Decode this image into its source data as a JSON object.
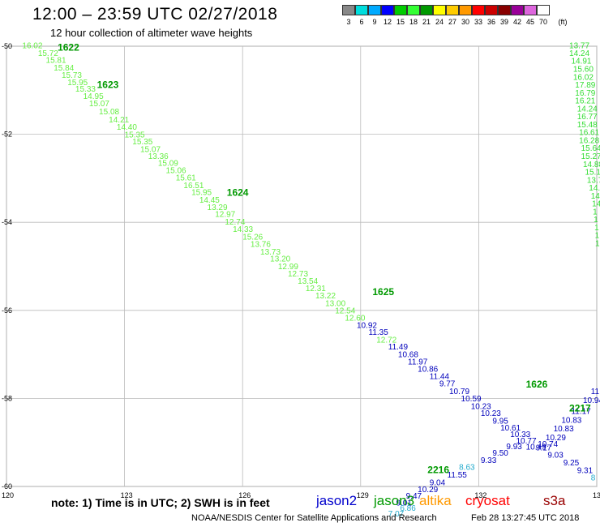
{
  "title": "12:00 – 23:59 UTC 02/27/2018",
  "subtitle": "12 hour collection of altimeter wave heights",
  "note": "note:  1) Time is in UTC;  2) SWH is in feet",
  "satellites": [
    {
      "name": "jason2",
      "color": "#0000cc"
    },
    {
      "name": "jason3",
      "color": "#009900"
    },
    {
      "name": "altika",
      "color": "#ff9900"
    },
    {
      "name": "cryosat",
      "color": "#ff0000"
    },
    {
      "name": "s3a",
      "color": "#990000"
    }
  ],
  "credit": "NOAA/NESDIS Center for Satellite Applications and Research",
  "timestamp": "Feb 28 13:27:45 UTC 2018",
  "legend": {
    "labels": [
      "3",
      "6",
      "9",
      "12",
      "15",
      "18",
      "21",
      "24",
      "27",
      "30",
      "33",
      "36",
      "39",
      "42",
      "45",
      "70"
    ],
    "unit": "(ft)",
    "colors": [
      "#888888",
      "#00dddd",
      "#00aaff",
      "#0000ff",
      "#00cc00",
      "#33ff33",
      "#009900",
      "#ffff00",
      "#ffcc00",
      "#ff9900",
      "#ff0000",
      "#cc0000",
      "#880000",
      "#990099",
      "#dd66dd",
      "#ffffff"
    ]
  },
  "chart_data": {
    "type": "scatter",
    "xlim": [
      120,
      135
    ],
    "ylim": [
      -60,
      -50
    ],
    "x_ticks": [
      "120",
      "123",
      "126",
      "129",
      "132",
      "135"
    ],
    "y_ticks": [
      "-50",
      "-52",
      "-54",
      "-56",
      "-58",
      "-60"
    ],
    "grid": true,
    "track_labels": [
      {
        "text": "1622",
        "x": 121.3,
        "y": -50.1,
        "color": "#009900"
      },
      {
        "text": "1623",
        "x": 122.3,
        "y": -50.95,
        "color": "#009900"
      },
      {
        "text": "1624",
        "x": 125.6,
        "y": -53.4,
        "color": "#009900"
      },
      {
        "text": "1625",
        "x": 129.3,
        "y": -55.65,
        "color": "#009900"
      },
      {
        "text": "1626",
        "x": 133.2,
        "y": -57.75,
        "color": "#009900"
      },
      {
        "text": "2217",
        "x": 134.3,
        "y": -58.3,
        "color": "#009900"
      },
      {
        "text": "2216",
        "x": 130.7,
        "y": -59.7,
        "color": "#009900"
      }
    ],
    "series": [
      {
        "name": "jason3",
        "color": "#66ee44",
        "points": [
          {
            "x": 120.4,
            "y": -50.05,
            "v": "16.02"
          },
          {
            "x": 120.8,
            "y": -50.22,
            "v": "15.72"
          },
          {
            "x": 121.0,
            "y": -50.38,
            "v": "15.81"
          },
          {
            "x": 121.2,
            "y": -50.55,
            "v": "15.84"
          },
          {
            "x": 121.4,
            "y": -50.72,
            "v": "15.73"
          },
          {
            "x": 121.55,
            "y": -50.88,
            "v": "15.95"
          },
          {
            "x": 121.75,
            "y": -51.03,
            "v": "15.33"
          },
          {
            "x": 121.95,
            "y": -51.2,
            "v": "14.95"
          },
          {
            "x": 122.1,
            "y": -51.36,
            "v": "15.07"
          },
          {
            "x": 122.35,
            "y": -51.55,
            "v": "15.08"
          },
          {
            "x": 122.6,
            "y": -51.73,
            "v": "14.21"
          },
          {
            "x": 122.8,
            "y": -51.9,
            "v": "14.40"
          },
          {
            "x": 123.0,
            "y": -52.07,
            "v": "15.35"
          },
          {
            "x": 123.2,
            "y": -52.23,
            "v": "15.35"
          },
          {
            "x": 123.4,
            "y": -52.4,
            "v": "15.07"
          },
          {
            "x": 123.6,
            "y": -52.56,
            "v": "13.36"
          },
          {
            "x": 123.85,
            "y": -52.72,
            "v": "15.09"
          },
          {
            "x": 124.05,
            "y": -52.88,
            "v": "15.06"
          },
          {
            "x": 124.3,
            "y": -53.05,
            "v": "15.61"
          },
          {
            "x": 124.5,
            "y": -53.22,
            "v": "16.51"
          },
          {
            "x": 124.7,
            "y": -53.38,
            "v": "15.95"
          },
          {
            "x": 124.9,
            "y": -53.55,
            "v": "14.45"
          },
          {
            "x": 125.1,
            "y": -53.72,
            "v": "13.29"
          },
          {
            "x": 125.3,
            "y": -53.88,
            "v": "12.97"
          },
          {
            "x": 125.55,
            "y": -54.05,
            "v": "12.74"
          },
          {
            "x": 125.75,
            "y": -54.22,
            "v": "14.33"
          },
          {
            "x": 126.0,
            "y": -54.39,
            "v": "15.26"
          },
          {
            "x": 126.2,
            "y": -54.56,
            "v": "13.76"
          },
          {
            "x": 126.45,
            "y": -54.73,
            "v": "13.73"
          },
          {
            "x": 126.7,
            "y": -54.89,
            "v": "13.20"
          },
          {
            "x": 126.9,
            "y": -55.06,
            "v": "12.99"
          },
          {
            "x": 127.15,
            "y": -55.23,
            "v": "12.73"
          },
          {
            "x": 127.4,
            "y": -55.4,
            "v": "13.54"
          },
          {
            "x": 127.6,
            "y": -55.56,
            "v": "12.31"
          },
          {
            "x": 127.85,
            "y": -55.73,
            "v": "13.22"
          },
          {
            "x": 128.1,
            "y": -55.9,
            "v": "13.00"
          },
          {
            "x": 128.35,
            "y": -56.07,
            "v": "12.54"
          },
          {
            "x": 128.6,
            "y": -56.23,
            "v": "12.60"
          },
          {
            "x": 129.4,
            "y": -56.73,
            "v": "12.72"
          }
        ]
      },
      {
        "name": "jason2",
        "color": "#0000bb",
        "points": [
          {
            "x": 128.9,
            "y": -56.4,
            "v": "10.92"
          },
          {
            "x": 129.2,
            "y": -56.56,
            "v": "11.35"
          },
          {
            "x": 129.7,
            "y": -56.89,
            "v": "11.49"
          },
          {
            "x": 129.95,
            "y": -57.06,
            "v": "10.68"
          },
          {
            "x": 130.2,
            "y": -57.23,
            "v": "11.97"
          },
          {
            "x": 130.45,
            "y": -57.39,
            "v": "10.86"
          },
          {
            "x": 130.75,
            "y": -57.56,
            "v": "11.44"
          },
          {
            "x": 131.0,
            "y": -57.73,
            "v": "9.77"
          },
          {
            "x": 131.25,
            "y": -57.9,
            "v": "10.79"
          },
          {
            "x": 131.55,
            "y": -58.07,
            "v": "10.59"
          },
          {
            "x": 131.8,
            "y": -58.24,
            "v": "10.23"
          },
          {
            "x": 132.05,
            "y": -58.4,
            "v": "10.23"
          },
          {
            "x": 132.35,
            "y": -58.57,
            "v": "9.95"
          },
          {
            "x": 132.55,
            "y": -58.73,
            "v": "10.61"
          },
          {
            "x": 132.8,
            "y": -58.88,
            "v": "10.33"
          },
          {
            "x": 132.95,
            "y": -59.02,
            "v": "10.77"
          },
          {
            "x": 133.2,
            "y": -59.16,
            "v": "10.49"
          },
          {
            "x": 133.5,
            "y": -59.1,
            "v": "10.74"
          },
          {
            "x": 133.7,
            "y": -58.95,
            "v": "10.29"
          },
          {
            "x": 133.9,
            "y": -58.75,
            "v": "10.83"
          },
          {
            "x": 134.1,
            "y": -58.55,
            "v": "10.83"
          },
          {
            "x": 134.35,
            "y": -58.35,
            "v": "11.17"
          },
          {
            "x": 134.65,
            "y": -58.1,
            "v": "10.94"
          },
          {
            "x": 134.85,
            "y": -57.9,
            "v": "11.1"
          },
          {
            "x": 133.45,
            "y": -59.18,
            "v": "9.17"
          },
          {
            "x": 133.75,
            "y": -59.35,
            "v": "9.03"
          },
          {
            "x": 134.15,
            "y": -59.52,
            "v": "9.25"
          },
          {
            "x": 134.5,
            "y": -59.7,
            "v": "9.31"
          },
          {
            "x": 132.35,
            "y": -59.3,
            "v": "9.50"
          },
          {
            "x": 132.7,
            "y": -59.15,
            "v": "9.93"
          },
          {
            "x": 132.05,
            "y": -59.47,
            "v": "9.33"
          },
          {
            "x": 131.2,
            "y": -59.8,
            "v": "11.55"
          },
          {
            "x": 130.75,
            "y": -59.97,
            "v": "9.04"
          },
          {
            "x": 130.45,
            "y": -60.13,
            "v": "10.29"
          },
          {
            "x": 130.15,
            "y": -60.28,
            "v": "9.47"
          },
          {
            "x": 129.9,
            "y": -60.43,
            "v": "9.01"
          }
        ]
      },
      {
        "name": "jason3-north",
        "color": "#33dd33",
        "points": [
          {
            "x": 134.3,
            "y": -50.05,
            "v": "13.77"
          },
          {
            "x": 134.3,
            "y": -50.22,
            "v": "14.24"
          },
          {
            "x": 134.35,
            "y": -50.4,
            "v": "14.91"
          },
          {
            "x": 134.4,
            "y": -50.58,
            "v": "15.60"
          },
          {
            "x": 134.4,
            "y": -50.76,
            "v": "16.02"
          },
          {
            "x": 134.45,
            "y": -50.94,
            "v": "17.89"
          },
          {
            "x": 134.45,
            "y": -51.12,
            "v": "16.79"
          },
          {
            "x": 134.45,
            "y": -51.3,
            "v": "16.21"
          },
          {
            "x": 134.5,
            "y": -51.48,
            "v": "14.24"
          },
          {
            "x": 134.5,
            "y": -51.66,
            "v": "16.77"
          },
          {
            "x": 134.5,
            "y": -51.84,
            "v": "15.48"
          },
          {
            "x": 134.55,
            "y": -52.02,
            "v": "16.61"
          },
          {
            "x": 134.55,
            "y": -52.2,
            "v": "16.28"
          },
          {
            "x": 134.6,
            "y": -52.38,
            "v": "15.64"
          },
          {
            "x": 134.6,
            "y": -52.56,
            "v": "15.27"
          },
          {
            "x": 134.65,
            "y": -52.74,
            "v": "14.88"
          },
          {
            "x": 134.7,
            "y": -52.92,
            "v": "15.1"
          },
          {
            "x": 134.75,
            "y": -53.1,
            "v": "13.7"
          },
          {
            "x": 134.8,
            "y": -53.28,
            "v": "14.0"
          },
          {
            "x": 134.85,
            "y": -53.46,
            "v": "14"
          },
          {
            "x": 134.88,
            "y": -53.64,
            "v": "14"
          },
          {
            "x": 134.9,
            "y": -53.82,
            "v": "1"
          },
          {
            "x": 134.92,
            "y": -54.0,
            "v": "1"
          },
          {
            "x": 134.94,
            "y": -54.18,
            "v": "1"
          },
          {
            "x": 134.95,
            "y": -54.36,
            "v": "1"
          },
          {
            "x": 134.96,
            "y": -54.54,
            "v": "1"
          }
        ]
      },
      {
        "name": "jason2-light",
        "color": "#22aacc",
        "points": [
          {
            "x": 131.5,
            "y": -59.62,
            "v": "8.63"
          },
          {
            "x": 129.7,
            "y": -60.68,
            "v": "7.07"
          },
          {
            "x": 130.0,
            "y": -60.55,
            "v": "6.86"
          },
          {
            "x": 134.85,
            "y": -59.86,
            "v": "8"
          }
        ]
      }
    ]
  }
}
